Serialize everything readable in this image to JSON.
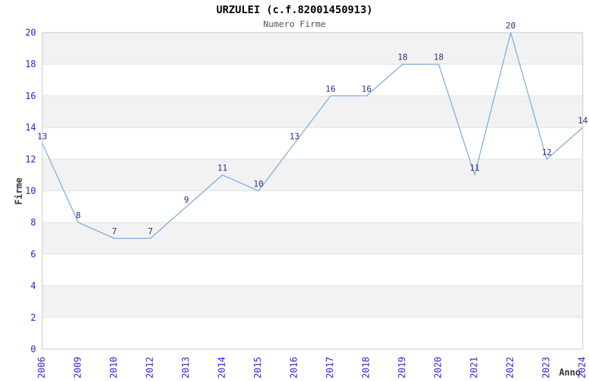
{
  "chart_data": {
    "type": "line",
    "title": "URZULEI (c.f.82001450913)",
    "subtitle": "Numero Firme",
    "xlabel": "Anno",
    "ylabel": "Firme",
    "categories": [
      "2006",
      "2009",
      "2010",
      "2012",
      "2013",
      "2014",
      "2015",
      "2016",
      "2017",
      "2018",
      "2019",
      "2020",
      "2021",
      "2022",
      "2023",
      "2024"
    ],
    "series": [
      {
        "name": "Numero Firme",
        "values": [
          13,
          8,
          7,
          7,
          9,
          11,
          10,
          13,
          16,
          16,
          18,
          18,
          11,
          20,
          12,
          14
        ]
      }
    ],
    "data_labels_shown": true,
    "ylim": [
      0,
      20
    ],
    "yticks": [
      0,
      2,
      4,
      6,
      8,
      10,
      12,
      14,
      16,
      18,
      20
    ],
    "grid": "horizontal-bands",
    "legend": "none",
    "colors": {
      "line": "#74abe2",
      "band_gray": "#f2f2f2",
      "grid_line": "#e0e0e0",
      "plot_border": "#c6c6c6",
      "tick_label": "#2424cc",
      "data_label": "#2e2e85",
      "axis_title": "#333333",
      "title": "#000000",
      "subtitle": "#555555"
    }
  }
}
